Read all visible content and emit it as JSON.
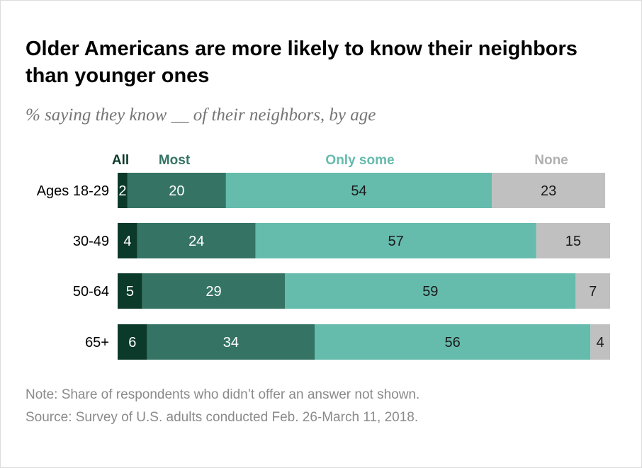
{
  "title": "Older Americans are more likely to know their neighbors than younger ones",
  "subtitle": "% saying they know __ of their neighbors, by age",
  "note": "Note: Share of respondents who didn’t offer an answer not shown.",
  "source": "Source: Survey of U.S. adults conducted Feb. 26-March 11, 2018.",
  "chart_data": {
    "type": "bar",
    "orientation": "horizontal",
    "stacked": true,
    "categories": [
      "Ages 18-29",
      "30-49",
      "50-64",
      "65+"
    ],
    "series": [
      {
        "name": "All",
        "values": [
          2,
          4,
          5,
          6
        ],
        "color": "#0b3a2a",
        "label_color": "#ffffff"
      },
      {
        "name": "Most",
        "values": [
          20,
          24,
          29,
          34
        ],
        "color": "#357464",
        "label_color": "#ffffff"
      },
      {
        "name": "Only some",
        "values": [
          54,
          57,
          59,
          56
        ],
        "color": "#65bbac",
        "label_color": "#1a1a1a"
      },
      {
        "name": "None",
        "values": [
          23,
          15,
          7,
          4
        ],
        "color": "#c0c0c0",
        "label_color": "#1a1a1a"
      }
    ],
    "legend_colors": [
      "#0b3a2a",
      "#357464",
      "#65bbac",
      "#b0b0b0"
    ],
    "legend_placement": "top",
    "grid": false,
    "xlim": [
      0,
      100
    ]
  }
}
